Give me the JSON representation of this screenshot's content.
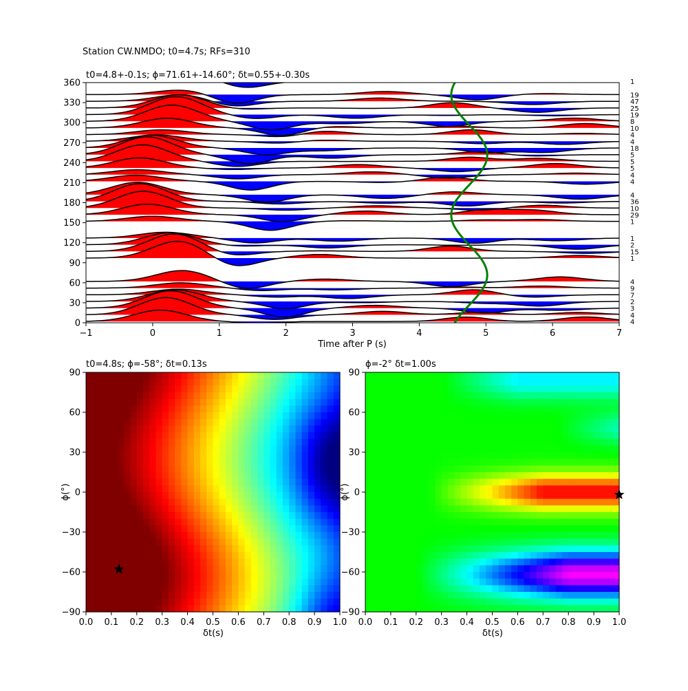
{
  "suptitle": "Station CW.NMDO; t0=4.7s; RFs=310",
  "chart_data": [
    {
      "type": "line",
      "panel": "receiver-functions",
      "title": "t0=4.8+-0.1s; ϕ=71.61+-14.60°; δt=0.55+-0.30s",
      "xlabel": "Time after P (s)",
      "ylabel": "",
      "xlim": [
        -1,
        7
      ],
      "ylim": [
        0,
        360
      ],
      "xticks": [
        -1,
        0,
        1,
        2,
        3,
        4,
        5,
        6,
        7
      ],
      "yticks": [
        0,
        30,
        60,
        90,
        120,
        150,
        180,
        210,
        240,
        270,
        300,
        330,
        360
      ],
      "positive_fill": "#ff0000",
      "negative_fill": "#0000ff",
      "curve_color": "#008000",
      "traces": [
        {
          "baz": 2,
          "count": "4"
        },
        {
          "baz": 12,
          "count": "4"
        },
        {
          "baz": 22,
          "count": "3"
        },
        {
          "baz": 32,
          "count": "2"
        },
        {
          "baz": 42,
          "count": "7"
        },
        {
          "baz": 52,
          "count": "9"
        },
        {
          "baz": 62,
          "count": "4"
        },
        {
          "baz": 97,
          "count": "1"
        },
        {
          "baz": 107,
          "count": "15"
        },
        {
          "baz": 117,
          "count": "2"
        },
        {
          "baz": 127,
          "count": "1"
        },
        {
          "baz": 152,
          "count": "1"
        },
        {
          "baz": 162,
          "count": "29"
        },
        {
          "baz": 172,
          "count": "10"
        },
        {
          "baz": 182,
          "count": "36"
        },
        {
          "baz": 192,
          "count": "4"
        },
        {
          "baz": 212,
          "count": "4"
        },
        {
          "baz": 222,
          "count": "4"
        },
        {
          "baz": 232,
          "count": "5"
        },
        {
          "baz": 242,
          "count": "5"
        },
        {
          "baz": 252,
          "count": "5"
        },
        {
          "baz": 262,
          "count": "18"
        },
        {
          "baz": 272,
          "count": "4"
        },
        {
          "baz": 282,
          "count": "4"
        },
        {
          "baz": 292,
          "count": "10"
        },
        {
          "baz": 302,
          "count": "8"
        },
        {
          "baz": 312,
          "count": "19"
        },
        {
          "baz": 322,
          "count": "25"
        },
        {
          "baz": 332,
          "count": "47"
        },
        {
          "baz": 342,
          "count": "19"
        },
        {
          "baz": 362,
          "count": "1"
        }
      ],
      "predicted_curve": {
        "t_mean": 4.75,
        "amplitude": 0.27,
        "period_deg": 180,
        "phase_deg": 71.61
      }
    },
    {
      "type": "heatmap",
      "panel": "grid-search-left",
      "title": "t0=4.8s; ϕ=-58°; δt=0.13s",
      "xlabel": "δt(s)",
      "ylabel": "ϕ(°)",
      "xlim": [
        0,
        1
      ],
      "ylim": [
        -90,
        90
      ],
      "xticks": [
        "0.0",
        "0.1",
        "0.2",
        "0.3",
        "0.4",
        "0.5",
        "0.6",
        "0.7",
        "0.8",
        "0.9",
        "1.0"
      ],
      "yticks": [
        -90,
        -60,
        -30,
        0,
        30,
        60,
        90
      ],
      "colormap": "jet",
      "best_fit": {
        "dt": 0.13,
        "phi": -58
      }
    },
    {
      "type": "heatmap",
      "panel": "grid-search-right",
      "title": "ϕ=-2° δt=1.00s",
      "xlabel": "δt(s)",
      "ylabel": "ϕ(°)",
      "xlim": [
        0,
        1
      ],
      "ylim": [
        -90,
        90
      ],
      "xticks": [
        "0.0",
        "0.1",
        "0.2",
        "0.3",
        "0.4",
        "0.5",
        "0.6",
        "0.7",
        "0.8",
        "0.9",
        "1.0"
      ],
      "yticks": [
        -90,
        -60,
        -30,
        0,
        30,
        60,
        90
      ],
      "colormap": "hsv",
      "best_fit": {
        "dt": 1.0,
        "phi": -2
      }
    }
  ]
}
